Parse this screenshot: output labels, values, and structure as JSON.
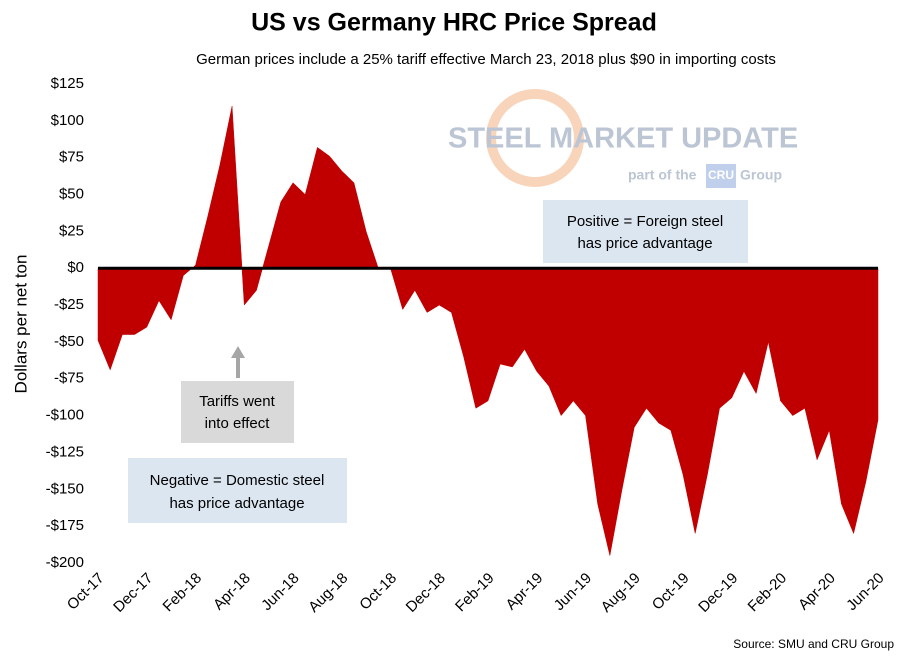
{
  "chart_data": {
    "type": "area",
    "title": "US vs Germany HRC Price Spread",
    "subtitle": "German prices include a 25% tariff effective March 23, 2018 plus $90 in importing costs",
    "y_label": "Dollars per net ton",
    "source": "Source: SMU and CRU Group",
    "logo": [
      "STEEL MARKET UPDATE",
      "part of the",
      "CRU",
      "Group"
    ],
    "annotations": [
      "Tariffs went",
      "into effect",
      "Negative = Domestic steel",
      "has price advantage",
      "Positive = Foreign steel",
      "has price advantage"
    ],
    "color": "#c00000",
    "categories": [
      "Oct-17",
      null,
      null,
      null,
      "Dec-17",
      null,
      null,
      null,
      "Feb-18",
      null,
      null,
      null,
      "Apr-18",
      null,
      null,
      null,
      "Jun-18",
      null,
      null,
      null,
      "Aug-18",
      null,
      null,
      null,
      "Oct-18",
      null,
      null,
      null,
      "Dec-18",
      null,
      null,
      null,
      "Feb-19",
      null,
      null,
      null,
      "Apr-19",
      null,
      null,
      null,
      "Jun-19",
      null,
      null,
      null,
      "Aug-19",
      null,
      null,
      null,
      "Oct-19",
      null,
      null,
      null,
      "Dec-19",
      null,
      null,
      null,
      "Feb-20",
      null,
      null,
      null,
      "Apr-20",
      null,
      null,
      null,
      "Jun-20"
    ],
    "values": [
      -49,
      -69,
      -45,
      -45,
      -40,
      -22,
      -35,
      -5,
      2,
      35,
      70,
      110,
      -25,
      -15,
      15,
      45,
      58,
      50,
      82,
      76,
      66,
      58,
      25,
      0,
      0,
      -28,
      -15,
      -30,
      -25,
      -30,
      -60,
      -95,
      -90,
      -65,
      -67,
      -55,
      -70,
      -80,
      -100,
      -90,
      -100,
      -160,
      -195,
      -150,
      -108,
      -95,
      -105,
      -110,
      -140,
      -180,
      -140,
      -95,
      -88,
      -70,
      -85,
      -50,
      -90,
      -100,
      -95,
      -130,
      -110,
      -160,
      -180,
      -145,
      -103
    ],
    "ylim": [
      -200,
      125
    ],
    "yticks": [
      {
        "value": -200,
        "label": "-$200"
      },
      {
        "value": -175,
        "label": "-$175"
      },
      {
        "value": -150,
        "label": "-$150"
      },
      {
        "value": -125,
        "label": "-$125"
      },
      {
        "value": -100,
        "label": "-$100"
      },
      {
        "value": -75,
        "label": "-$75"
      },
      {
        "value": -50,
        "label": "-$50"
      },
      {
        "value": -25,
        "label": "-$25"
      },
      {
        "value": 0,
        "label": "$0"
      },
      {
        "value": 25,
        "label": "$25"
      },
      {
        "value": 50,
        "label": "$50"
      },
      {
        "value": 75,
        "label": "$75"
      },
      {
        "value": 100,
        "label": "$100"
      },
      {
        "value": 125,
        "label": "$125"
      }
    ],
    "grid": false
  }
}
